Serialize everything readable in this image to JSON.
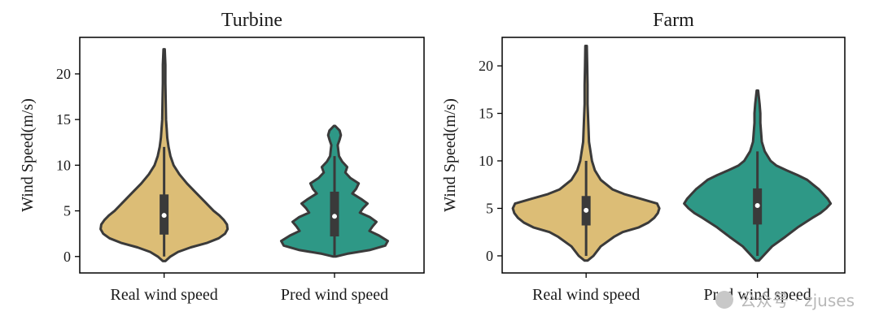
{
  "chart_data": [
    {
      "type": "violin",
      "title": "Turbine",
      "ylabel": "Wind Speed(m/s)",
      "ylim": [
        -1.8,
        24
      ],
      "yticks": [
        0,
        5,
        10,
        15,
        20
      ],
      "categories": [
        "Real wind speed",
        "Pred wind speed"
      ],
      "colors": [
        "#dcbd76",
        "#2e9886"
      ],
      "violins": [
        {
          "category": "Real wind speed",
          "color": "#dcbd76",
          "min": -0.5,
          "max": 22.7,
          "q1": 2.4,
          "median": 4.5,
          "q3": 6.8,
          "whisker_low": 0,
          "whisker_high": 12,
          "shape": [
            [
              -0.5,
              0.02
            ],
            [
              0,
              0.1
            ],
            [
              0.5,
              0.22
            ],
            [
              1,
              0.42
            ],
            [
              1.5,
              0.68
            ],
            [
              2,
              0.86
            ],
            [
              2.5,
              0.96
            ],
            [
              3,
              1.0
            ],
            [
              3.5,
              0.99
            ],
            [
              4,
              0.94
            ],
            [
              4.5,
              0.87
            ],
            [
              5,
              0.78
            ],
            [
              6,
              0.64
            ],
            [
              7,
              0.5
            ],
            [
              8,
              0.36
            ],
            [
              9,
              0.24
            ],
            [
              10,
              0.15
            ],
            [
              11,
              0.1
            ],
            [
              12,
              0.07
            ],
            [
              13,
              0.05
            ],
            [
              14,
              0.04
            ],
            [
              15,
              0.03
            ],
            [
              17,
              0.025
            ],
            [
              19,
              0.02
            ],
            [
              21,
              0.02
            ],
            [
              22.7,
              0.01
            ]
          ]
        },
        {
          "category": "Pred wind speed",
          "color": "#2e9886",
          "min": 0,
          "max": 14.3,
          "q1": 2.2,
          "median": 4.4,
          "q3": 7.1,
          "whisker_low": 0,
          "whisker_high": 11,
          "shape": [
            [
              0,
              0.02
            ],
            [
              0.3,
              0.2
            ],
            [
              0.7,
              0.55
            ],
            [
              1.2,
              0.8
            ],
            [
              1.7,
              0.84
            ],
            [
              2.3,
              0.7
            ],
            [
              2.8,
              0.55
            ],
            [
              3.3,
              0.6
            ],
            [
              3.8,
              0.66
            ],
            [
              4.3,
              0.56
            ],
            [
              4.8,
              0.4
            ],
            [
              5.3,
              0.45
            ],
            [
              5.8,
              0.52
            ],
            [
              6.3,
              0.42
            ],
            [
              6.9,
              0.28
            ],
            [
              7.4,
              0.34
            ],
            [
              8,
              0.38
            ],
            [
              8.6,
              0.25
            ],
            [
              9.2,
              0.17
            ],
            [
              9.8,
              0.2
            ],
            [
              10.4,
              0.12
            ],
            [
              11,
              0.07
            ],
            [
              11.6,
              0.06
            ],
            [
              12.2,
              0.05
            ],
            [
              12.8,
              0.08
            ],
            [
              13.3,
              0.1
            ],
            [
              13.8,
              0.08
            ],
            [
              14.3,
              0.01
            ]
          ]
        }
      ]
    },
    {
      "type": "violin",
      "title": "Farm",
      "ylabel": "Wind Speed(m/s)",
      "ylim": [
        -1.8,
        23
      ],
      "yticks": [
        0,
        5,
        10,
        15,
        20
      ],
      "categories": [
        "Real wind speed",
        "Pred wind speed"
      ],
      "colors": [
        "#dcbd76",
        "#2e9886"
      ],
      "violins": [
        {
          "category": "Real wind speed",
          "color": "#dcbd76",
          "min": -0.5,
          "max": 22.1,
          "q1": 3.2,
          "median": 4.8,
          "q3": 6.3,
          "whisker_low": 0,
          "whisker_high": 10,
          "shape": [
            [
              -0.5,
              0.02
            ],
            [
              0,
              0.1
            ],
            [
              1,
              0.2
            ],
            [
              2,
              0.38
            ],
            [
              2.5,
              0.5
            ],
            [
              3,
              0.72
            ],
            [
              3.5,
              0.85
            ],
            [
              4,
              0.93
            ],
            [
              4.5,
              0.98
            ],
            [
              5,
              1.0
            ],
            [
              5.5,
              0.97
            ],
            [
              6,
              0.75
            ],
            [
              6.5,
              0.52
            ],
            [
              7,
              0.36
            ],
            [
              8,
              0.2
            ],
            [
              9,
              0.12
            ],
            [
              10,
              0.08
            ],
            [
              11,
              0.06
            ],
            [
              12,
              0.04
            ],
            [
              14,
              0.03
            ],
            [
              16,
              0.02
            ],
            [
              18,
              0.02
            ],
            [
              20,
              0.015
            ],
            [
              22.1,
              0.01
            ]
          ]
        },
        {
          "category": "Pred wind speed",
          "color": "#2e9886",
          "min": -0.5,
          "max": 17.4,
          "q1": 3.3,
          "median": 5.3,
          "q3": 7.1,
          "whisker_low": 0,
          "whisker_high": 11,
          "shape": [
            [
              -0.5,
              0.02
            ],
            [
              0,
              0.08
            ],
            [
              1,
              0.2
            ],
            [
              2,
              0.38
            ],
            [
              3,
              0.55
            ],
            [
              4,
              0.75
            ],
            [
              4.5,
              0.86
            ],
            [
              5,
              0.94
            ],
            [
              5.5,
              1.0
            ],
            [
              6,
              0.96
            ],
            [
              6.5,
              0.9
            ],
            [
              7,
              0.84
            ],
            [
              7.5,
              0.76
            ],
            [
              8,
              0.68
            ],
            [
              8.5,
              0.55
            ],
            [
              9,
              0.4
            ],
            [
              9.5,
              0.26
            ],
            [
              10,
              0.18
            ],
            [
              11,
              0.1
            ],
            [
              12,
              0.06
            ],
            [
              13,
              0.05
            ],
            [
              14,
              0.04
            ],
            [
              15,
              0.04
            ],
            [
              16,
              0.03
            ],
            [
              17.4,
              0.01
            ]
          ]
        }
      ]
    }
  ],
  "watermark": {
    "text": "公众号 · zjuses"
  }
}
